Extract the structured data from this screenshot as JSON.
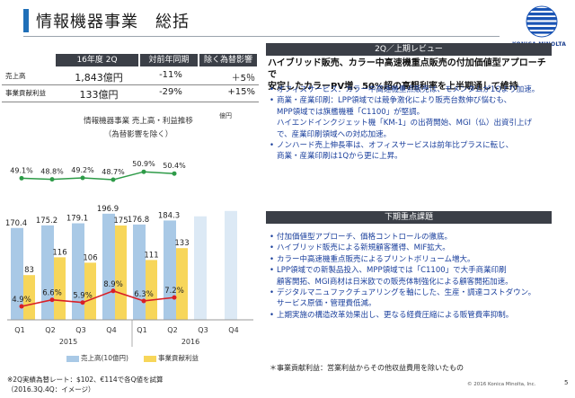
{
  "header": {
    "title": "情報機器事業　総括"
  },
  "logo": {
    "text": "KONICA MINOLTA"
  },
  "kpi": {
    "headers": [
      "16年度 2Q",
      "対前年同期",
      "除く為替影響"
    ],
    "rows": [
      {
        "label": "売上高",
        "value": "1,843億円",
        "yoy": "-11%",
        "ex_fx": "＋5％"
      },
      {
        "label": "事業貢献利益",
        "value": "133億円",
        "yoy": "-29%",
        "ex_fx": "+15%"
      }
    ]
  },
  "chart_title": "情報機器事業 売上高・利益推移",
  "chart_subtitle": "（為替影響を除く）",
  "chart_unit": "億円",
  "chart_data": {
    "type": "bar",
    "categories": [
      "Q1",
      "Q2",
      "Q3",
      "Q4",
      "Q1",
      "Q2",
      "Q3",
      "Q4"
    ],
    "year_labels": [
      "2015",
      "2016"
    ],
    "series": [
      {
        "name": "売上高(10億円)",
        "values": [
          170.4,
          175.2,
          179.1,
          196.9,
          176.8,
          184.3,
          null,
          null
        ],
        "color": "#a9c9e6",
        "labels": [
          "170.4",
          "175.2",
          "179.1",
          "196.9",
          "176.8",
          "184.3",
          "",
          ""
        ]
      },
      {
        "name": "事業貢献利益",
        "values": [
          83,
          116,
          106,
          175,
          111,
          133,
          null,
          null
        ],
        "color": "#f7d65a",
        "labels": [
          "83",
          "116",
          "106",
          "175",
          "111",
          "133",
          "",
          ""
        ]
      }
    ],
    "gross_margin": [
      "49.1%",
      "48.8%",
      "49.2%",
      "48.7%",
      "50.9%",
      "50.4%"
    ],
    "gross_margin_values": [
      49.1,
      48.8,
      49.2,
      48.7,
      50.9,
      50.4
    ],
    "op_margin": [
      "4.9%",
      "6.6%",
      "5.9%",
      "8.9%",
      "6.3%",
      "7.2%"
    ],
    "op_margin_values": [
      4.9,
      6.6,
      5.9,
      8.9,
      6.3,
      7.2
    ],
    "forecast_color": "#dce9f5"
  },
  "legend": {
    "sales": "売上高(10億円)",
    "profit": "事業貢献利益"
  },
  "footnote": [
    "※2Q実績為替レート：$102、€114で各Q値を試算",
    "（2016.3Q.4Q：イメージ）"
  ],
  "review": {
    "heading": "2Q／上期レビュー",
    "headline": [
      "ハイブリッド販売、カラー中高速機重点販売の付加価値型アプローチで",
      "安定したカラーPV増、50%超の高粗利率を上半期通して維持"
    ],
    "bullets": [
      [
        "オフィスサービス：カラー中高速機重点販売は、モメンタムが1Qより加速。"
      ],
      [
        "商業・産業印刷：LPP領域では競争激化により販売台数伸び悩むも、",
        "MPP領域では旗艦機種「C1100」が堅調。",
        "ハイエンドインクジェット機「KM-1」の出荷開始、MGI（仏）出資引上げ",
        "で、産業印刷領域への対応加速。"
      ],
      [
        "ノンハード売上伸長率は、オフィスサービスは前年比プラスに転じ、",
        "商業・産業印刷は1Qから更に上昇。"
      ]
    ]
  },
  "priorities": {
    "heading": "下期重点課題",
    "bullets": [
      [
        "付加価値型アプローチ、価格コントロールの徹底。"
      ],
      [
        "ハイブリッド販売による新規顧客獲得、MIF拡大。"
      ],
      [
        "カラー中高速機重点販売によるプリントボリューム増大。"
      ],
      [
        "LPP領域での新製品投入、MPP領域では「C1100」で大手商業印刷",
        "顧客開拓、MGI商材は日米欧での販売体制強化による顧客開拓加速。"
      ],
      [
        "デジタルマニュファクチュアリングを軸にした、生産・調達コストダウン。",
        "サービス原価・管理費低減。"
      ],
      [
        "上期実施の構造改革効果出し、更なる経費圧縮による販管費率抑制。"
      ]
    ],
    "note": "＊事業貢献利益：営業利益からその他収益費用を除いたもの"
  },
  "footer": {
    "copyright": "© 2016 Konica Minolta, Inc.",
    "page": "5"
  }
}
